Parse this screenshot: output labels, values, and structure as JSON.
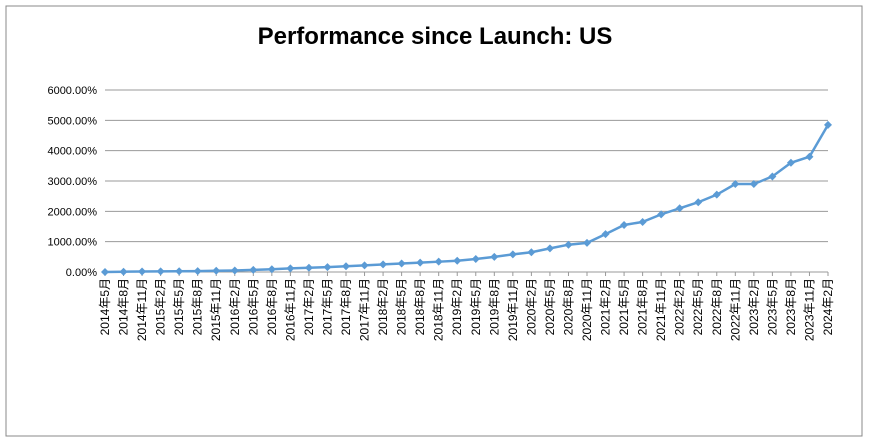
{
  "chart_data": {
    "type": "line",
    "title": "Performance since Launch: US",
    "categories": [
      "2014年5月",
      "2014年8月",
      "2014年11月",
      "2015年2月",
      "2015年5月",
      "2015年8月",
      "2015年11月",
      "2016年2月",
      "2016年5月",
      "2016年8月",
      "2016年11月",
      "2017年2月",
      "2017年5月",
      "2017年8月",
      "2017年11月",
      "2018年2月",
      "2018年5月",
      "2018年8月",
      "2018年11月",
      "2019年2月",
      "2019年5月",
      "2019年8月",
      "2019年11月",
      "2020年2月",
      "2020年5月",
      "2020年8月",
      "2020年11月",
      "2021年2月",
      "2021年5月",
      "2021年8月",
      "2021年11月",
      "2022年2月",
      "2022年5月",
      "2022年8月",
      "2022年11月",
      "2023年2月",
      "2023年5月",
      "2023年8月",
      "2023年11月",
      "2024年2月"
    ],
    "series": [
      {
        "name": "US",
        "color": "#5b9bd5",
        "values": [
          0,
          10,
          15,
          20,
          25,
          30,
          40,
          50,
          70,
          90,
          120,
          140,
          160,
          190,
          220,
          250,
          280,
          310,
          340,
          370,
          430,
          500,
          580,
          650,
          780,
          900,
          960,
          1250,
          1550,
          1650,
          1900,
          2100,
          2300,
          2550,
          2900,
          2900,
          3150,
          3600,
          3800,
          4850
        ]
      }
    ],
    "ylim": [
      0,
      6000
    ],
    "yticks": [
      {
        "value": 0,
        "label": "0.00%"
      },
      {
        "value": 1000,
        "label": "1000.00%"
      },
      {
        "value": 2000,
        "label": "2000.00%"
      },
      {
        "value": 3000,
        "label": "3000.00%"
      },
      {
        "value": 4000,
        "label": "4000.00%"
      },
      {
        "value": 5000,
        "label": "5000.00%"
      },
      {
        "value": 6000,
        "label": "6000.00%"
      }
    ],
    "grid": true
  }
}
